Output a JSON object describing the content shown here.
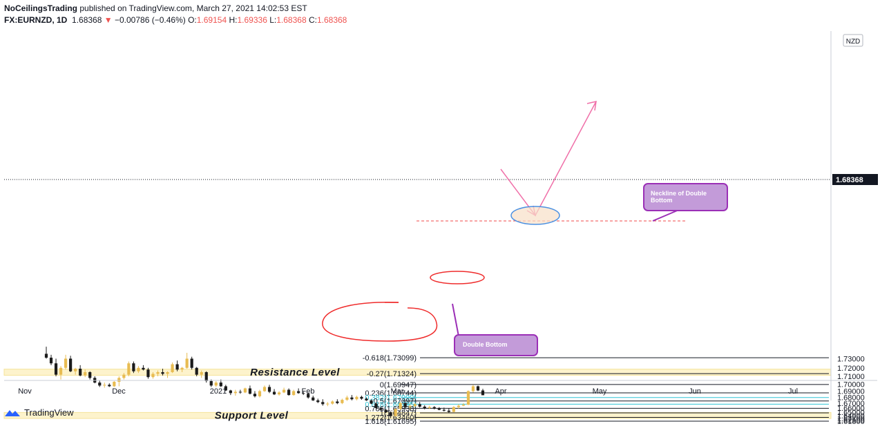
{
  "header": {
    "author": "NoCeilingsTrading",
    "published": "published on TradingView.com, March 27, 2021 14:02:53 EST",
    "symbol": "FX:EURNZD, 1D",
    "last": "1.68368",
    "change": "−0.00786 (−0.46%)",
    "o_label": "O:",
    "o": "1.69154",
    "h_label": "H:",
    "h": "1.69336",
    "l_label": "L:",
    "l": "1.68368",
    "c_label": "C:",
    "c": "1.68368"
  },
  "footer": {
    "brand": "TradingView"
  },
  "currency_badge": "NZD",
  "last_price_tag": "1.68368",
  "colors": {
    "up": "#e8bc52",
    "down": "#1b1b1b",
    "zone": "#fdf3cc",
    "cyan": "#2ec4d6",
    "pink": "#f06fa8",
    "annot_fill": "#c39bd9",
    "annot_stroke": "#9b2fb6",
    "circle": "#ef2b2b"
  },
  "chart_data": {
    "type": "candlestick",
    "symbol": "FX:EURNZD",
    "timeframe": "1D",
    "ylim": [
      1.6115,
      1.7345
    ],
    "y_ticks": [
      "1.73000",
      "1.72000",
      "1.71000",
      "1.70000",
      "1.69000",
      "1.68000",
      "1.67000",
      "1.66000",
      "1.65000",
      "1.64000",
      "1.63200",
      "1.62500",
      "1.61800"
    ],
    "x_labels": [
      "Nov",
      "Dec",
      "2021",
      "Feb",
      "Mar",
      "Apr",
      "May",
      "Jun",
      "Jul"
    ],
    "fib_levels": [
      {
        "label": "-0.618(1.73099)",
        "value": 1.73099,
        "color": "#131722"
      },
      {
        "label": "-0.27(1.71324)",
        "value": 1.71324,
        "color": "#131722"
      },
      {
        "label": "0(1.69947)",
        "value": 1.69947,
        "color": "#131722"
      },
      {
        "label": "0.236(1.68744)",
        "value": 1.68744,
        "color": "#131722"
      },
      {
        "label": "0.382(1.67999)",
        "value": 1.67999,
        "color": "#2ec4d6"
      },
      {
        "label": "0.5(1.67397)",
        "value": 1.67397,
        "color": "#131722"
      },
      {
        "label": "0.618(1.66795)",
        "value": 1.66795,
        "color": "#2ec4d6"
      },
      {
        "label": "0.786(1.65938)",
        "value": 1.65938,
        "color": "#131722"
      },
      {
        "label": "1(1.64847)",
        "value": 1.64847,
        "color": "#131722"
      },
      {
        "label": "1.272(1.63460)",
        "value": 1.6346,
        "color": "#131722"
      },
      {
        "label": "1.618(1.61695)",
        "value": 1.61695,
        "color": "#131722"
      }
    ],
    "zones": [
      {
        "label": "Resistance Level",
        "from": 1.7112,
        "to": 1.7185
      },
      {
        "label": "Support Level",
        "from": 1.6305,
        "to": 1.6495
      }
    ],
    "neckline": 1.6686,
    "annotations": [
      "Neckline of Double Bottom",
      "Double Bottom"
    ],
    "candles": [
      [
        1.735,
        1.742,
        1.73,
        1.731
      ],
      [
        1.731,
        1.734,
        1.723,
        1.725
      ],
      [
        1.725,
        1.73,
        1.71,
        1.712
      ],
      [
        1.712,
        1.722,
        1.706,
        1.72
      ],
      [
        1.72,
        1.734,
        1.718,
        1.73
      ],
      [
        1.73,
        1.733,
        1.715,
        1.716
      ],
      [
        1.716,
        1.72,
        1.712,
        1.719
      ],
      [
        1.719,
        1.723,
        1.71,
        1.711
      ],
      [
        1.711,
        1.718,
        1.709,
        1.715
      ],
      [
        1.715,
        1.716,
        1.706,
        1.708
      ],
      [
        1.708,
        1.71,
        1.701,
        1.702
      ],
      [
        1.702,
        1.705,
        1.696,
        1.698
      ],
      [
        1.698,
        1.702,
        1.695,
        1.699
      ],
      [
        1.699,
        1.701,
        1.696,
        1.697
      ],
      [
        1.697,
        1.704,
        1.696,
        1.703
      ],
      [
        1.703,
        1.71,
        1.697,
        1.708
      ],
      [
        1.708,
        1.714,
        1.706,
        1.712
      ],
      [
        1.712,
        1.727,
        1.71,
        1.725
      ],
      [
        1.725,
        1.727,
        1.714,
        1.716
      ],
      [
        1.716,
        1.722,
        1.714,
        1.72
      ],
      [
        1.72,
        1.723,
        1.717,
        1.718
      ],
      [
        1.718,
        1.72,
        1.707,
        1.709
      ],
      [
        1.709,
        1.715,
        1.707,
        1.713
      ],
      [
        1.713,
        1.717,
        1.71,
        1.715
      ],
      [
        1.715,
        1.719,
        1.711,
        1.713
      ],
      [
        1.713,
        1.716,
        1.708,
        1.715
      ],
      [
        1.715,
        1.726,
        1.714,
        1.724
      ],
      [
        1.724,
        1.728,
        1.716,
        1.718
      ],
      [
        1.718,
        1.721,
        1.715,
        1.72
      ],
      [
        1.72,
        1.736,
        1.719,
        1.73
      ],
      [
        1.73,
        1.732,
        1.718,
        1.72
      ],
      [
        1.72,
        1.721,
        1.71,
        1.712
      ],
      [
        1.712,
        1.717,
        1.708,
        1.715
      ],
      [
        1.715,
        1.716,
        1.702,
        1.704
      ],
      [
        1.704,
        1.706,
        1.696,
        1.698
      ],
      [
        1.698,
        1.704,
        1.696,
        1.702
      ],
      [
        1.702,
        1.706,
        1.696,
        1.697
      ],
      [
        1.697,
        1.699,
        1.69,
        1.691
      ],
      [
        1.691,
        1.692,
        1.684,
        1.687
      ],
      [
        1.687,
        1.692,
        1.683,
        1.689
      ],
      [
        1.689,
        1.692,
        1.686,
        1.688
      ],
      [
        1.688,
        1.695,
        1.687,
        1.694
      ],
      [
        1.694,
        1.698,
        1.685,
        1.686
      ],
      [
        1.686,
        1.69,
        1.68,
        1.682
      ],
      [
        1.682,
        1.692,
        1.68,
        1.69
      ],
      [
        1.69,
        1.698,
        1.689,
        1.696
      ],
      [
        1.696,
        1.699,
        1.687,
        1.689
      ],
      [
        1.689,
        1.693,
        1.684,
        1.685
      ],
      [
        1.685,
        1.69,
        1.683,
        1.688
      ],
      [
        1.688,
        1.695,
        1.687,
        1.692
      ],
      [
        1.692,
        1.694,
        1.683,
        1.684
      ],
      [
        1.684,
        1.692,
        1.683,
        1.69
      ],
      [
        1.69,
        1.694,
        1.686,
        1.687
      ],
      [
        1.687,
        1.689,
        1.684,
        1.686
      ],
      [
        1.686,
        1.688,
        1.678,
        1.68
      ],
      [
        1.68,
        1.683,
        1.674,
        1.675
      ],
      [
        1.675,
        1.678,
        1.67,
        1.672
      ],
      [
        1.672,
        1.677,
        1.665,
        1.668
      ],
      [
        1.668,
        1.672,
        1.664,
        1.669
      ],
      [
        1.669,
        1.675,
        1.667,
        1.673
      ],
      [
        1.673,
        1.677,
        1.668,
        1.67
      ],
      [
        1.67,
        1.678,
        1.668,
        1.676
      ],
      [
        1.676,
        1.683,
        1.674,
        1.68
      ],
      [
        1.68,
        1.684,
        1.675,
        1.677
      ],
      [
        1.677,
        1.683,
        1.675,
        1.681
      ],
      [
        1.681,
        1.683,
        1.676,
        1.678
      ],
      [
        1.678,
        1.68,
        1.674,
        1.675
      ],
      [
        1.675,
        1.677,
        1.668,
        1.669
      ],
      [
        1.669,
        1.671,
        1.658,
        1.66
      ],
      [
        1.66,
        1.663,
        1.653,
        1.656
      ],
      [
        1.656,
        1.658,
        1.648,
        1.65
      ],
      [
        1.65,
        1.652,
        1.6318,
        1.639
      ],
      [
        1.639,
        1.659,
        1.638,
        1.658
      ],
      [
        1.658,
        1.672,
        1.655,
        1.67
      ],
      [
        1.67,
        1.672,
        1.66,
        1.662
      ],
      [
        1.662,
        1.668,
        1.656,
        1.664
      ],
      [
        1.664,
        1.67,
        1.662,
        1.668
      ],
      [
        1.668,
        1.672,
        1.661,
        1.663
      ],
      [
        1.663,
        1.666,
        1.657,
        1.66
      ],
      [
        1.66,
        1.665,
        1.658,
        1.662
      ],
      [
        1.662,
        1.664,
        1.657,
        1.659
      ],
      [
        1.659,
        1.662,
        1.655,
        1.656
      ],
      [
        1.656,
        1.661,
        1.652,
        1.654
      ],
      [
        1.654,
        1.66,
        1.649,
        1.651
      ],
      [
        1.651,
        1.664,
        1.65,
        1.662
      ],
      [
        1.662,
        1.668,
        1.659,
        1.665
      ],
      [
        1.665,
        1.67,
        1.664,
        1.667
      ],
      [
        1.667,
        1.691,
        1.666,
        1.69
      ],
      [
        1.69,
        1.699,
        1.688,
        1.697
      ],
      [
        1.697,
        1.698,
        1.69,
        1.691
      ],
      [
        1.691,
        1.6934,
        1.6837,
        1.6837
      ]
    ]
  }
}
